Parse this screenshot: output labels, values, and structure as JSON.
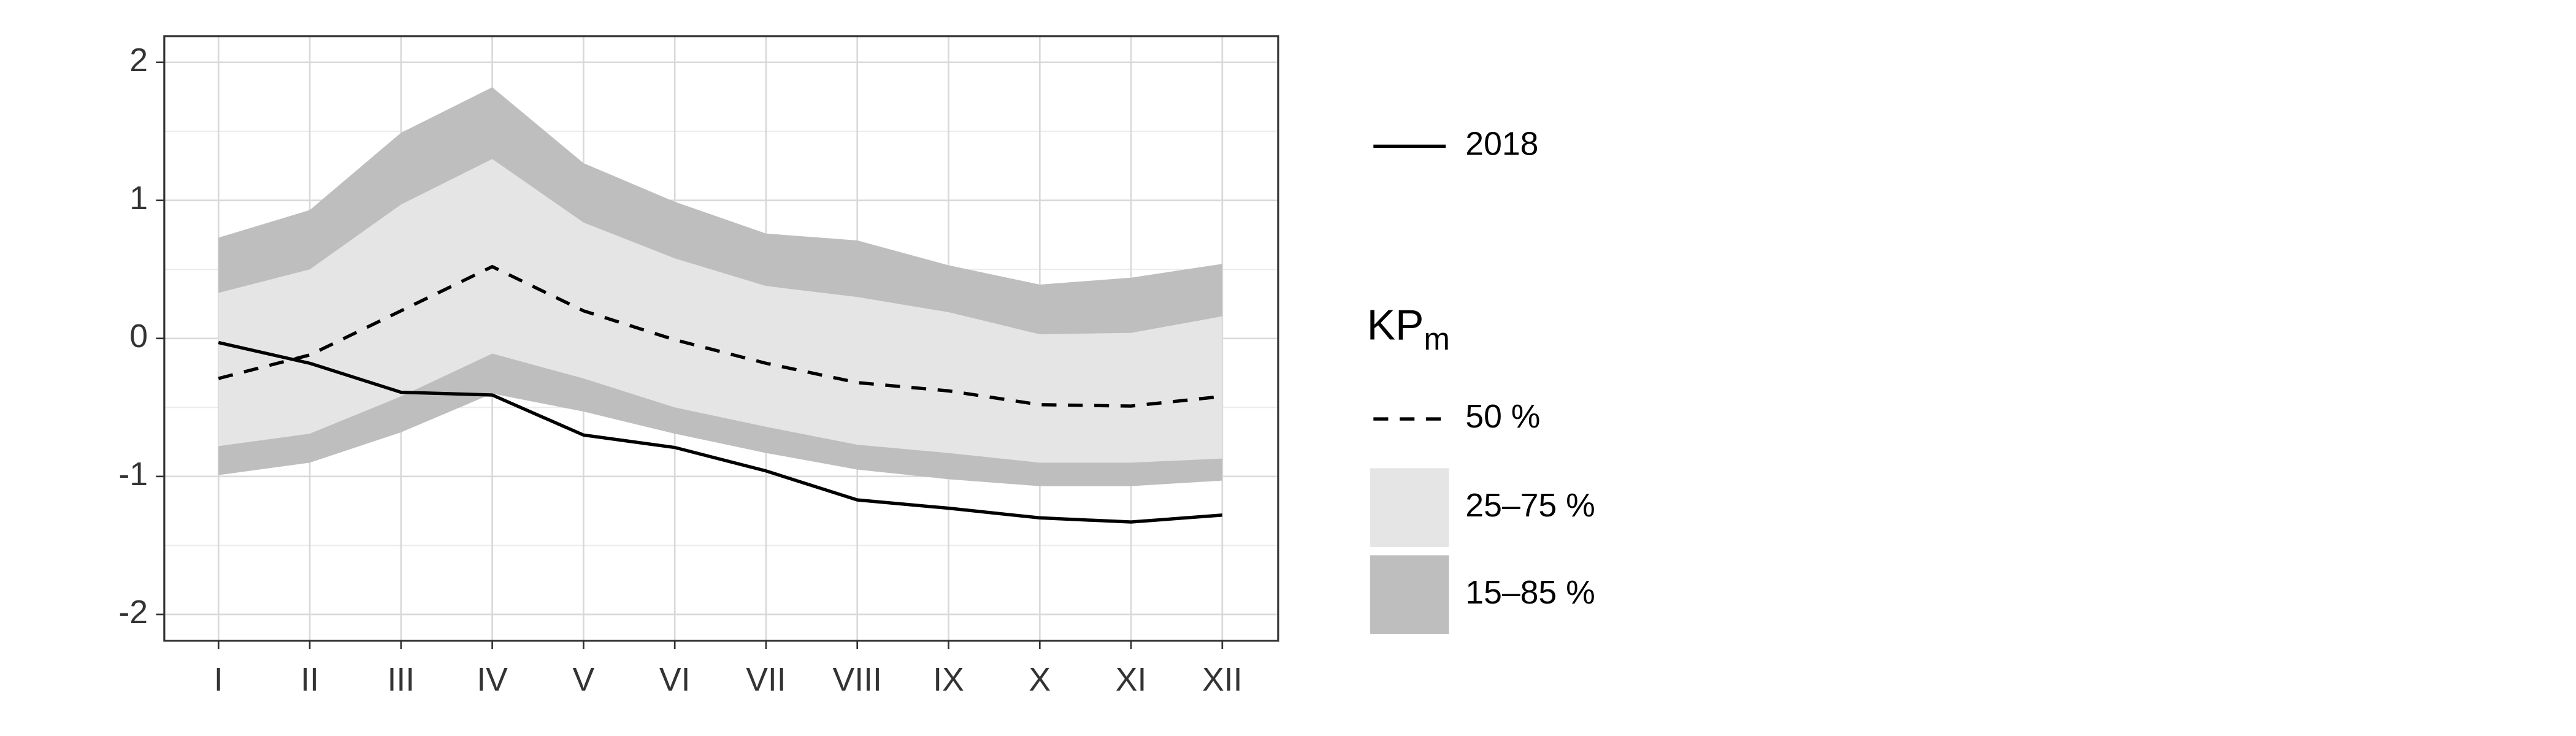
{
  "chart_data": {
    "type": "line",
    "categories": [
      "I",
      "II",
      "III",
      "IV",
      "V",
      "VI",
      "VII",
      "VIII",
      "IX",
      "X",
      "XI",
      "XII"
    ],
    "ylim": [
      -2.19,
      2.19
    ],
    "yticks": [
      -2,
      -1,
      0,
      1,
      2
    ],
    "yminor_ticks": [
      -1.5,
      -0.5,
      0.5,
      1.5
    ],
    "grid": true,
    "legend_title": "KP",
    "legend_title_subscript": "m",
    "series": [
      {
        "name": "2018",
        "color": "#000000",
        "dash": false,
        "values": [
          -0.03,
          -0.18,
          -0.39,
          -0.41,
          -0.7,
          -0.79,
          -0.96,
          -1.17,
          -1.23,
          -1.3,
          -1.33,
          -1.28
        ]
      },
      {
        "name": "50 %",
        "color": "#000000",
        "dash": true,
        "values": [
          -0.29,
          -0.12,
          0.2,
          0.52,
          0.2,
          -0.01,
          -0.18,
          -0.32,
          -0.38,
          -0.48,
          -0.49,
          -0.42
        ]
      },
      {
        "name": "25–75 %",
        "color": "#e5e5e5",
        "upper": [
          0.33,
          0.5,
          0.97,
          1.3,
          0.84,
          0.58,
          0.38,
          0.3,
          0.19,
          0.03,
          0.04,
          0.16
        ],
        "lower": [
          -0.78,
          -0.69,
          -0.42,
          -0.11,
          -0.29,
          -0.5,
          -0.64,
          -0.77,
          -0.83,
          -0.9,
          -0.9,
          -0.87
        ]
      },
      {
        "name": "15–85 %",
        "color": "#bebebe",
        "upper": [
          0.73,
          0.93,
          1.49,
          1.82,
          1.27,
          0.99,
          0.76,
          0.71,
          0.53,
          0.39,
          0.44,
          0.54
        ],
        "lower": [
          -0.99,
          -0.9,
          -0.68,
          -0.4,
          -0.53,
          -0.69,
          -0.83,
          -0.95,
          -1.02,
          -1.07,
          -1.07,
          -1.03
        ]
      }
    ]
  }
}
